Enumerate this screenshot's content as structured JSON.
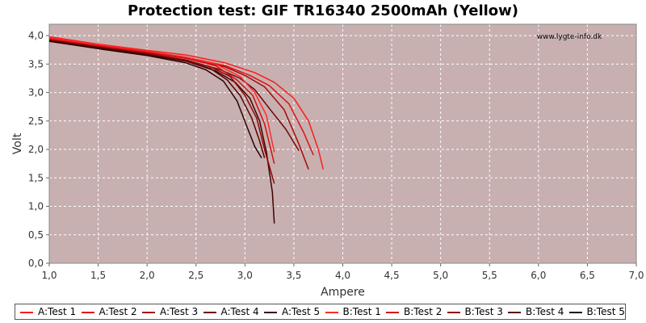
{
  "chart_data": {
    "type": "line",
    "title": "Protection test: GIF TR16340 2500mAh (Yellow)",
    "watermark": "www.lygte-info.dk",
    "xlabel": "Ampere",
    "ylabel": "Volt",
    "xlim": [
      1.0,
      7.0
    ],
    "ylim": [
      0.0,
      4.2
    ],
    "x_ticks": [
      "1,0",
      "1,5",
      "2,0",
      "2,5",
      "3,0",
      "3,5",
      "4,0",
      "4,5",
      "5,0",
      "5,5",
      "6,0",
      "6,5",
      "7,0"
    ],
    "y_ticks": [
      "0,0",
      "0,5",
      "1,0",
      "1,5",
      "2,0",
      "2,5",
      "3,0",
      "3,5",
      "4,0"
    ],
    "grid": true,
    "legend_position": "bottom",
    "plot_background": "#c8b0b0",
    "series": [
      {
        "name": "A:Test 1",
        "color": "#ff1a1a",
        "x": [
          1.0,
          1.5,
          2.0,
          2.4,
          2.8,
          3.1,
          3.3,
          3.5,
          3.65,
          3.75,
          3.8
        ],
        "y": [
          3.98,
          3.85,
          3.74,
          3.66,
          3.52,
          3.35,
          3.18,
          2.9,
          2.5,
          2.0,
          1.65
        ]
      },
      {
        "name": "A:Test 2",
        "color": "#e01010",
        "x": [
          1.0,
          1.5,
          2.0,
          2.4,
          2.8,
          3.05,
          3.25,
          3.45,
          3.6,
          3.7
        ],
        "y": [
          3.95,
          3.83,
          3.72,
          3.62,
          3.47,
          3.3,
          3.12,
          2.8,
          2.3,
          1.9
        ]
      },
      {
        "name": "A:Test 3",
        "color": "#a80808",
        "x": [
          1.0,
          1.5,
          2.0,
          2.4,
          2.8,
          3.0,
          3.2,
          3.4,
          3.55,
          3.65
        ],
        "y": [
          3.93,
          3.81,
          3.7,
          3.6,
          3.45,
          3.3,
          3.1,
          2.7,
          2.1,
          1.65
        ]
      },
      {
        "name": "A:Test 4",
        "color": "#700404",
        "x": [
          1.0,
          1.5,
          2.0,
          2.4,
          2.75,
          2.95,
          3.1,
          3.25,
          3.42,
          3.55
        ],
        "y": [
          3.92,
          3.8,
          3.68,
          3.57,
          3.4,
          3.25,
          3.05,
          2.72,
          2.35,
          1.98
        ]
      },
      {
        "name": "A:Test 5",
        "color": "#400202",
        "x": [
          1.0,
          1.5,
          2.0,
          2.4,
          2.7,
          2.9,
          3.05,
          3.15,
          3.22,
          3.28,
          3.3
        ],
        "y": [
          3.9,
          3.78,
          3.66,
          3.55,
          3.38,
          3.18,
          2.9,
          2.5,
          1.95,
          1.25,
          0.7
        ]
      },
      {
        "name": "B:Test 1",
        "color": "#ff2a2a",
        "x": [
          1.0,
          1.5,
          2.0,
          2.4,
          2.7,
          2.95,
          3.1,
          3.22,
          3.3
        ],
        "y": [
          3.96,
          3.84,
          3.72,
          3.62,
          3.5,
          3.28,
          3.0,
          2.6,
          1.95
        ]
      },
      {
        "name": "B:Test 2",
        "color": "#d41010",
        "x": [
          1.0,
          1.5,
          2.0,
          2.4,
          2.7,
          2.92,
          3.08,
          3.2,
          3.3
        ],
        "y": [
          3.94,
          3.82,
          3.71,
          3.6,
          3.47,
          3.22,
          2.95,
          2.45,
          1.75
        ]
      },
      {
        "name": "B:Test 3",
        "color": "#900606",
        "x": [
          1.0,
          1.5,
          2.0,
          2.4,
          2.65,
          2.85,
          3.0,
          3.12,
          3.2,
          3.3
        ],
        "y": [
          3.92,
          3.8,
          3.68,
          3.57,
          3.45,
          3.28,
          2.95,
          2.55,
          2.0,
          1.4
        ]
      },
      {
        "name": "B:Test 4",
        "color": "#5a0303",
        "x": [
          1.0,
          1.5,
          2.0,
          2.4,
          2.65,
          2.82,
          2.95,
          3.07,
          3.15,
          3.2
        ],
        "y": [
          3.91,
          3.79,
          3.67,
          3.55,
          3.42,
          3.22,
          2.95,
          2.55,
          2.15,
          1.85
        ]
      },
      {
        "name": "B:Test 5",
        "color": "#2a0101",
        "x": [
          1.0,
          1.5,
          2.0,
          2.4,
          2.6,
          2.78,
          2.92,
          3.02,
          3.1,
          3.17
        ],
        "y": [
          3.9,
          3.77,
          3.65,
          3.52,
          3.4,
          3.2,
          2.85,
          2.4,
          2.05,
          1.85
        ]
      }
    ]
  }
}
